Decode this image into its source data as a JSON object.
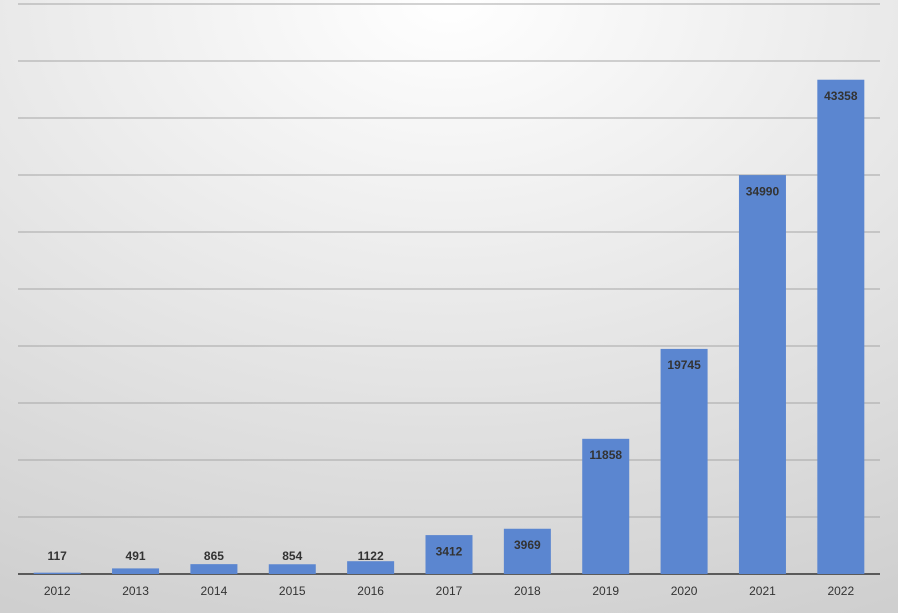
{
  "chart_data": {
    "type": "bar",
    "categories": [
      "2012",
      "2013",
      "2014",
      "2015",
      "2016",
      "2017",
      "2018",
      "2019",
      "2020",
      "2021",
      "2022"
    ],
    "values": [
      117,
      491,
      865,
      854,
      1122,
      3412,
      3969,
      11858,
      19745,
      34990,
      43358
    ],
    "color": "#5b86d0",
    "ylim": [
      0,
      50000
    ],
    "yticks": [
      0,
      5000,
      10000,
      15000,
      20000,
      25000,
      30000,
      35000,
      40000,
      45000,
      50000
    ],
    "grid": true
  }
}
